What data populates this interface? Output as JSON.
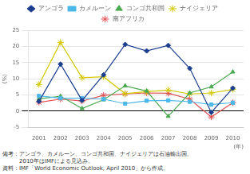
{
  "chart_data": {
    "type": "line",
    "x": [
      2001,
      2002,
      2003,
      2004,
      2005,
      2006,
      2007,
      2008,
      2009,
      2010
    ],
    "series": [
      {
        "name": "アンゴラ",
        "color": "#1a3d8f",
        "marker": "diamond",
        "values": [
          3.0,
          14.5,
          3.3,
          11.2,
          20.6,
          18.6,
          20.3,
          13.2,
          -0.4,
          7.1
        ]
      },
      {
        "name": "カメルーン",
        "color": "#4db8e8",
        "marker": "square",
        "values": [
          4.7,
          4.0,
          4.0,
          3.7,
          2.3,
          3.2,
          3.3,
          2.9,
          2.0,
          2.6
        ]
      },
      {
        "name": "コンゴ共和国",
        "color": "#4aaa50",
        "marker": "triangle",
        "values": [
          3.8,
          4.6,
          0.8,
          3.5,
          7.8,
          6.2,
          -1.6,
          5.6,
          7.5,
          12.1
        ]
      },
      {
        "name": "ナイジェリア",
        "color": "#d4c800",
        "marker": "star",
        "values": [
          8.2,
          21.2,
          10.3,
          10.6,
          5.4,
          6.0,
          6.5,
          5.3,
          5.6,
          6.7
        ]
      },
      {
        "name": "南アフリカ",
        "color": "#e05050",
        "marker": "star",
        "values": [
          2.7,
          3.7,
          3.1,
          4.9,
          5.3,
          5.6,
          5.5,
          3.7,
          -1.8,
          2.6
        ]
      }
    ],
    "xlim": [
      2000.5,
      2010.5
    ],
    "xticks": [
      2001,
      2002,
      2003,
      2004,
      2005,
      2006,
      2007,
      2008,
      2009,
      2010
    ],
    "ylim": [
      -5,
      25
    ],
    "yticks": [
      -5,
      0,
      5,
      10,
      15,
      20,
      25
    ],
    "ylabel": "(%)",
    "xlabel": "(年)",
    "annotations": [
      "備考：アンゴラ、カメルーン、コンゴ共和国、ナイジェリアは石油輸出国。",
      "　　　2010年はIMFによる見込み。",
      "資料：IMF「World Economic Outlook, April 2010」から作成。"
    ],
    "grid": true,
    "legend": "top"
  }
}
